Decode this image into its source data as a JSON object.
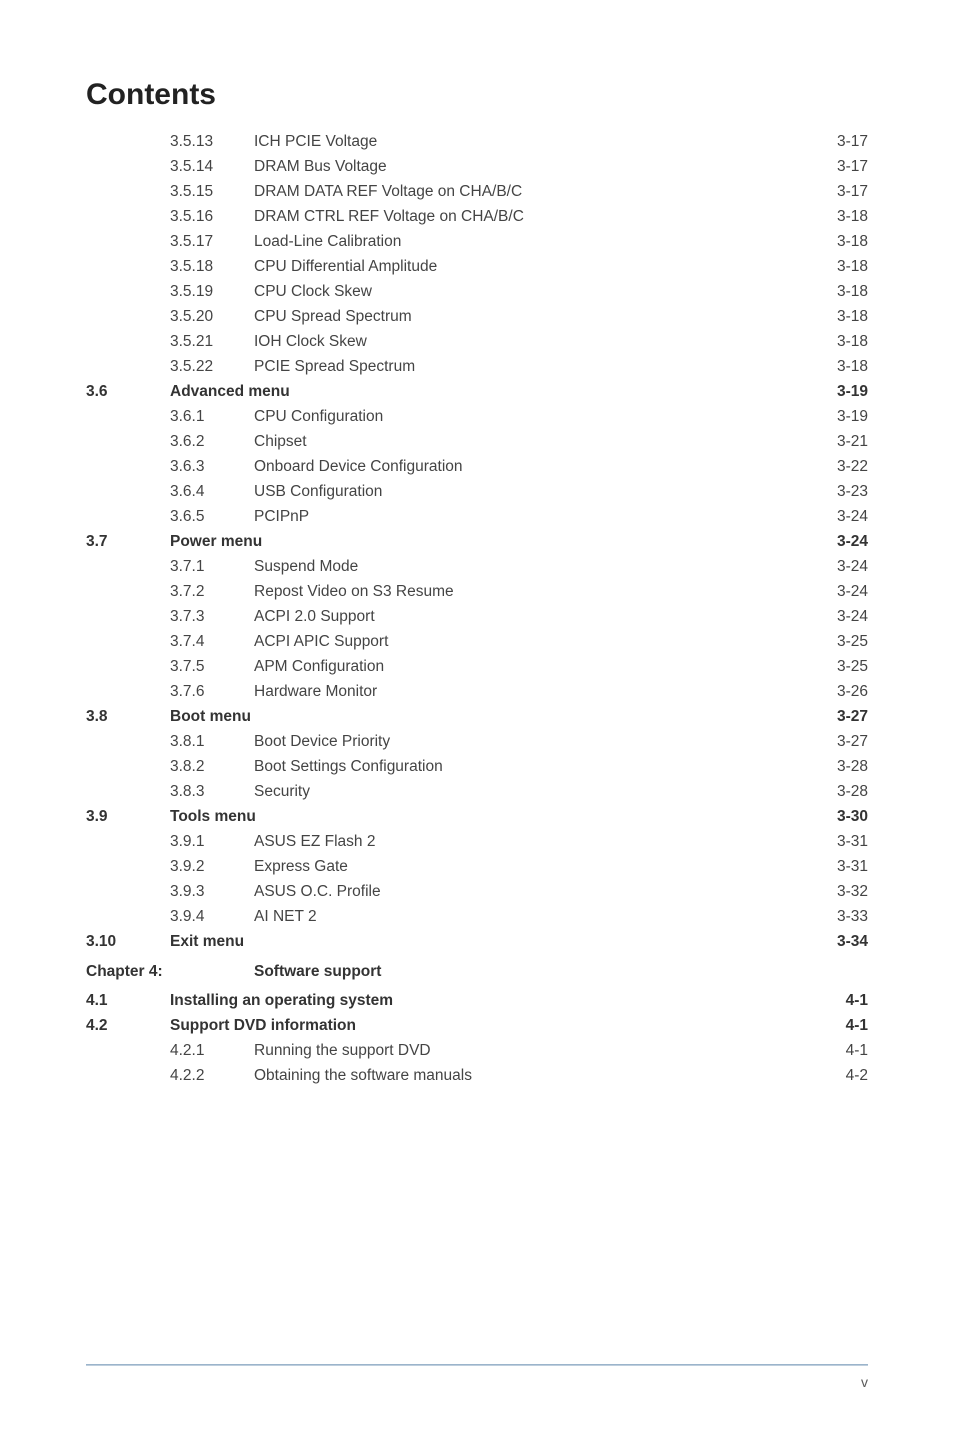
{
  "title": "Contents",
  "footer_page": "v",
  "rows": [
    {
      "type": "sub",
      "sec": "",
      "sub": "3.5.13",
      "label": "ICH PCIE Voltage",
      "page": "3-17"
    },
    {
      "type": "sub",
      "sec": "",
      "sub": "3.5.14",
      "label": "DRAM Bus Voltage",
      "page": "3-17"
    },
    {
      "type": "sub",
      "sec": "",
      "sub": "3.5.15",
      "label": "DRAM DATA REF Voltage on CHA/B/C",
      "page": "3-17"
    },
    {
      "type": "sub",
      "sec": "",
      "sub": "3.5.16",
      "label": "DRAM CTRL REF Voltage on CHA/B/C",
      "page": "3-18"
    },
    {
      "type": "sub",
      "sec": "",
      "sub": "3.5.17",
      "label": "Load-Line Calibration",
      "page": "3-18"
    },
    {
      "type": "sub",
      "sec": "",
      "sub": "3.5.18",
      "label": "CPU Differential Amplitude",
      "page": "3-18"
    },
    {
      "type": "sub",
      "sec": "",
      "sub": "3.5.19",
      "label": "CPU Clock Skew",
      "page": "3-18"
    },
    {
      "type": "sub",
      "sec": "",
      "sub": "3.5.20",
      "label": "CPU Spread Spectrum",
      "page": "3-18"
    },
    {
      "type": "sub",
      "sec": "",
      "sub": "3.5.21",
      "label": "IOH Clock Skew",
      "page": "3-18"
    },
    {
      "type": "sub",
      "sec": "",
      "sub": "3.5.22",
      "label": "PCIE Spread Spectrum",
      "page": "3-18"
    },
    {
      "type": "section",
      "sec": "3.6",
      "label": "Advanced menu",
      "page": "3-19"
    },
    {
      "type": "sub",
      "sec": "",
      "sub": "3.6.1",
      "label": "CPU Configuration",
      "page": "3-19"
    },
    {
      "type": "sub",
      "sec": "",
      "sub": "3.6.2",
      "label": "Chipset",
      "page": "3-21"
    },
    {
      "type": "sub",
      "sec": "",
      "sub": "3.6.3",
      "label": "Onboard Device Configuration",
      "page": "3-22"
    },
    {
      "type": "sub",
      "sec": "",
      "sub": "3.6.4",
      "label": "USB Configuration",
      "page": "3-23"
    },
    {
      "type": "sub",
      "sec": "",
      "sub": "3.6.5",
      "label": "PCIPnP",
      "page": "3-24"
    },
    {
      "type": "section",
      "sec": "3.7",
      "label": "Power menu",
      "page": "3-24"
    },
    {
      "type": "sub",
      "sec": "",
      "sub": "3.7.1",
      "label": "Suspend Mode",
      "page": "3-24"
    },
    {
      "type": "sub",
      "sec": "",
      "sub": "3.7.2",
      "label": "Repost Video on S3 Resume",
      "page": "3-24"
    },
    {
      "type": "sub",
      "sec": "",
      "sub": "3.7.3",
      "label": "ACPI 2.0 Support",
      "page": "3-24"
    },
    {
      "type": "sub",
      "sec": "",
      "sub": "3.7.4",
      "label": "ACPI APIC Support",
      "page": "3-25"
    },
    {
      "type": "sub",
      "sec": "",
      "sub": "3.7.5",
      "label": "APM Configuration",
      "page": "3-25"
    },
    {
      "type": "sub",
      "sec": "",
      "sub": "3.7.6",
      "label": "Hardware Monitor",
      "page": "3-26"
    },
    {
      "type": "section",
      "sec": "3.8",
      "label": "Boot menu",
      "page": "3-27"
    },
    {
      "type": "sub",
      "sec": "",
      "sub": "3.8.1",
      "label": "Boot Device Priority",
      "page": "3-27"
    },
    {
      "type": "sub",
      "sec": "",
      "sub": "3.8.2",
      "label": "Boot Settings Configuration",
      "page": "3-28"
    },
    {
      "type": "sub",
      "sec": "",
      "sub": "3.8.3",
      "label": "Security",
      "page": "3-28"
    },
    {
      "type": "section",
      "sec": "3.9",
      "label": "Tools menu",
      "page": "3-30"
    },
    {
      "type": "sub",
      "sec": "",
      "sub": "3.9.1",
      "label": "ASUS EZ Flash 2",
      "page": "3-31"
    },
    {
      "type": "sub",
      "sec": "",
      "sub": "3.9.2",
      "label": "Express Gate",
      "page": "3-31"
    },
    {
      "type": "sub",
      "sec": "",
      "sub": "3.9.3",
      "label": "ASUS O.C. Profile",
      "page": "3-32"
    },
    {
      "type": "sub",
      "sec": "",
      "sub": "3.9.4",
      "label": "AI NET 2",
      "page": "3-33"
    },
    {
      "type": "section",
      "sec": "3.10",
      "label": "Exit menu",
      "page": "3-34"
    },
    {
      "type": "chapter",
      "sec": "Chapter 4:",
      "label": "Software support"
    },
    {
      "type": "section",
      "sec": "4.1",
      "label": "Installing an operating system",
      "page": "4-1"
    },
    {
      "type": "section",
      "sec": "4.2",
      "label": "Support DVD information",
      "page": "4-1"
    },
    {
      "type": "sub",
      "sec": "",
      "sub": "4.2.1",
      "label": "Running the support DVD",
      "page": "4-1"
    },
    {
      "type": "sub",
      "sec": "",
      "sub": "4.2.2",
      "label": "Obtaining the software manuals",
      "page": "4-2"
    }
  ]
}
